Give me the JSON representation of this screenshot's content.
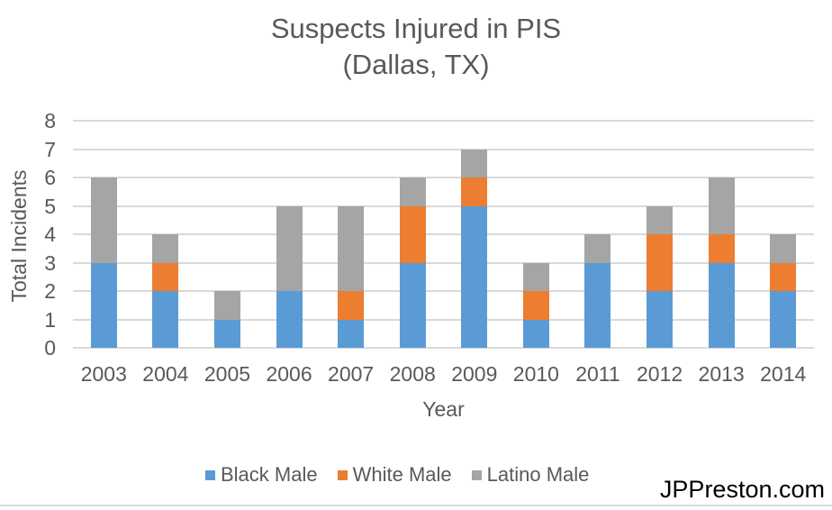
{
  "title": {
    "line1": "Suspects Injured in PIS",
    "line2": "(Dallas, TX)"
  },
  "chart_data": {
    "type": "bar",
    "stacked": true,
    "title": "Suspects Injured in PIS (Dallas, TX)",
    "categories": [
      "2003",
      "2004",
      "2005",
      "2006",
      "2007",
      "2008",
      "2009",
      "2010",
      "2011",
      "2012",
      "2013",
      "2014"
    ],
    "series": [
      {
        "name": "Black Male",
        "color": "#5B9BD5",
        "values": [
          3,
          2,
          1,
          2,
          1,
          3,
          5,
          1,
          3,
          2,
          3,
          2
        ]
      },
      {
        "name": "White Male",
        "color": "#ED7D31",
        "values": [
          0,
          1,
          0,
          0,
          1,
          2,
          1,
          1,
          0,
          2,
          1,
          1
        ]
      },
      {
        "name": "Latino Male",
        "color": "#A5A5A5",
        "values": [
          3,
          1,
          1,
          3,
          3,
          1,
          1,
          1,
          1,
          1,
          2,
          1
        ]
      }
    ],
    "totals": [
      6,
      4,
      2,
      5,
      5,
      6,
      7,
      3,
      4,
      5,
      6,
      4
    ],
    "xlabel": "Year",
    "ylabel": "Total Incidents",
    "ylim": [
      0,
      8
    ],
    "ytick_step": 1,
    "grid": true,
    "legend_position": "bottom"
  },
  "watermark": {
    "text": "JPPreston.com"
  },
  "colors": {
    "gridline": "#D9D9D9",
    "axis_text": "#595959",
    "watermark_text": "#000000"
  }
}
